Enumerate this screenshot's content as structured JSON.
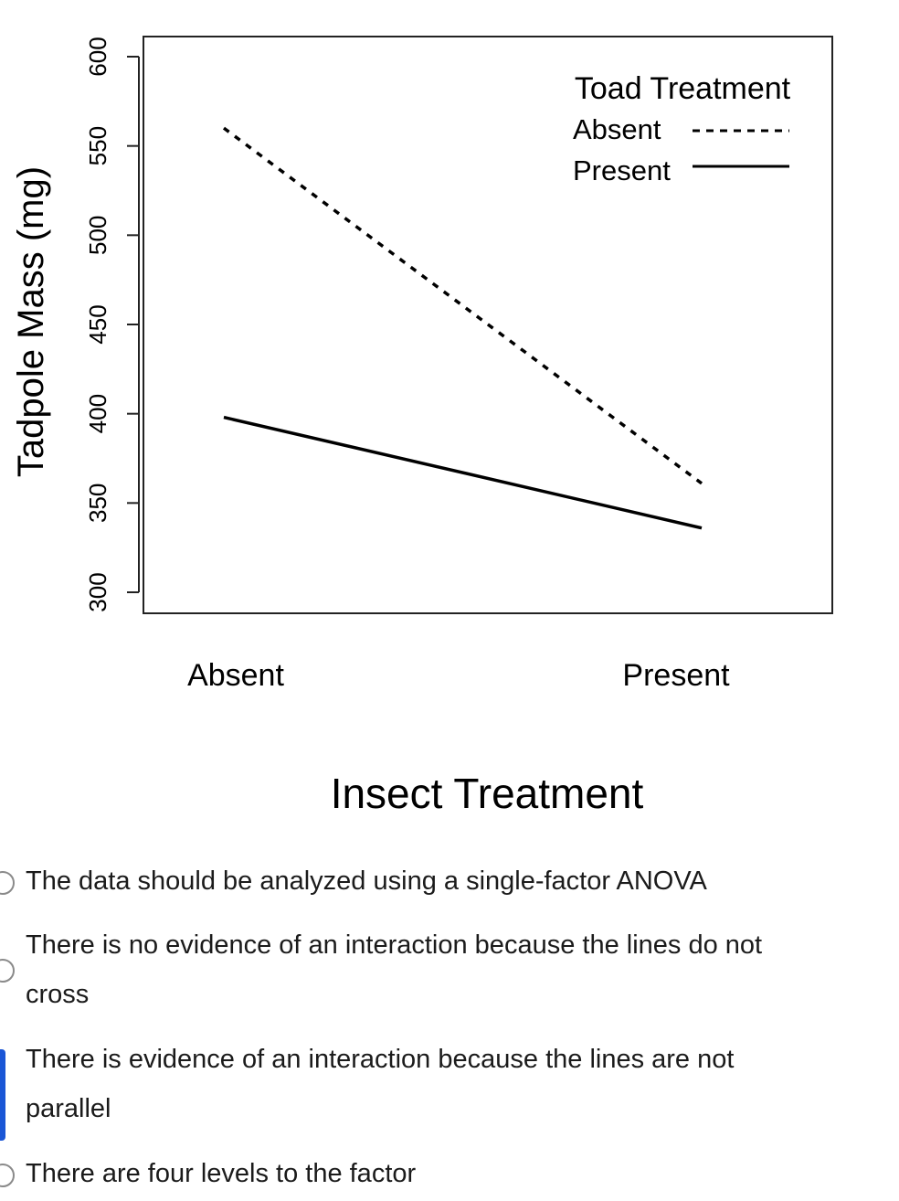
{
  "chart_data": {
    "type": "line",
    "ylabel": "Tadpole Mass (mg)",
    "xlabel": "Insect Treatment",
    "categories": [
      "Absent",
      "Present"
    ],
    "ylim": [
      300,
      600
    ],
    "yticks": [
      300,
      350,
      400,
      450,
      500,
      550,
      600
    ],
    "legend": {
      "title": "Toad Treatment",
      "placement": "top-right"
    },
    "series": [
      {
        "name": "Absent",
        "style": "dashed",
        "values": [
          560,
          361
        ]
      },
      {
        "name": "Present",
        "style": "solid",
        "values": [
          398,
          336
        ]
      }
    ],
    "grid": false
  },
  "options": [
    {
      "text": "The data should be analyzed using a single-factor ANOVA"
    },
    {
      "text_lines": [
        "There is no evidence of an interaction because the lines do not",
        "cross"
      ]
    },
    {
      "text_lines": [
        "There is evidence of an interaction because the lines are not",
        "parallel"
      ],
      "selected": true
    },
    {
      "text": "There are four levels to the factor"
    }
  ],
  "colors": {
    "line": "#000000",
    "selected": "#1a56d6"
  }
}
